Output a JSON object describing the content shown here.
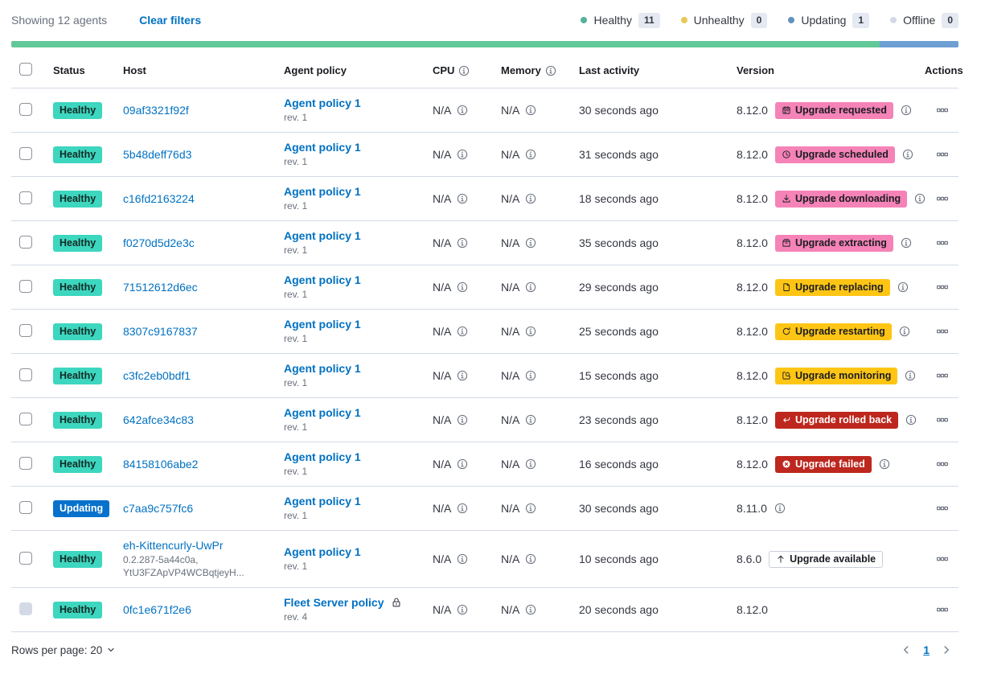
{
  "toolbar": {
    "showing": "Showing 12 agents",
    "clear_filters": "Clear filters"
  },
  "legend": [
    {
      "label": "Healthy",
      "count": "11",
      "color": "#54B399"
    },
    {
      "label": "Unhealthy",
      "count": "0",
      "color": "#E7C854"
    },
    {
      "label": "Updating",
      "count": "1",
      "color": "#6092C0"
    },
    {
      "label": "Offline",
      "count": "0",
      "color": "#D3DAE6"
    }
  ],
  "health_bar": [
    {
      "color": "#62C898",
      "percent": 91.67
    },
    {
      "color": "#6D9FD3",
      "percent": 8.33
    }
  ],
  "table": {
    "headers": [
      {
        "label": "Status"
      },
      {
        "label": "Host"
      },
      {
        "label": "Agent policy"
      },
      {
        "label": "CPU",
        "info": true
      },
      {
        "label": "Memory",
        "info": true
      },
      {
        "label": "Last activity"
      },
      {
        "label": "Version"
      },
      {
        "label": "Actions"
      }
    ],
    "rows": [
      {
        "status": "Healthy",
        "status_type": "healthy",
        "host": "09af3321f92f",
        "host_sub": null,
        "policy": "Agent policy 1",
        "policy_rev": "rev. 1",
        "policy_locked": false,
        "cpu": "N/A",
        "memory": "N/A",
        "last_activity": "30 seconds ago",
        "version": "8.12.0",
        "upgrade": {
          "label": "Upgrade requested",
          "style": "accent",
          "icon": "calendar"
        },
        "version_info": true,
        "checkbox_disabled": false
      },
      {
        "status": "Healthy",
        "status_type": "healthy",
        "host": "5b48deff76d3",
        "host_sub": null,
        "policy": "Agent policy 1",
        "policy_rev": "rev. 1",
        "policy_locked": false,
        "cpu": "N/A",
        "memory": "N/A",
        "last_activity": "31 seconds ago",
        "version": "8.12.0",
        "upgrade": {
          "label": "Upgrade scheduled",
          "style": "accent",
          "icon": "clock"
        },
        "version_info": true,
        "checkbox_disabled": false
      },
      {
        "status": "Healthy",
        "status_type": "healthy",
        "host": "c16fd2163224",
        "host_sub": null,
        "policy": "Agent policy 1",
        "policy_rev": "rev. 1",
        "policy_locked": false,
        "cpu": "N/A",
        "memory": "N/A",
        "last_activity": "18 seconds ago",
        "version": "8.12.0",
        "upgrade": {
          "label": "Upgrade downloading",
          "style": "accent",
          "icon": "download"
        },
        "version_info": true,
        "checkbox_disabled": false
      },
      {
        "status": "Healthy",
        "status_type": "healthy",
        "host": "f0270d5d2e3c",
        "host_sub": null,
        "policy": "Agent policy 1",
        "policy_rev": "rev. 1",
        "policy_locked": false,
        "cpu": "N/A",
        "memory": "N/A",
        "last_activity": "35 seconds ago",
        "version": "8.12.0",
        "upgrade": {
          "label": "Upgrade extracting",
          "style": "accent",
          "icon": "package"
        },
        "version_info": true,
        "checkbox_disabled": false
      },
      {
        "status": "Healthy",
        "status_type": "healthy",
        "host": "71512612d6ec",
        "host_sub": null,
        "policy": "Agent policy 1",
        "policy_rev": "rev. 1",
        "policy_locked": false,
        "cpu": "N/A",
        "memory": "N/A",
        "last_activity": "29 seconds ago",
        "version": "8.12.0",
        "upgrade": {
          "label": "Upgrade replacing",
          "style": "warning",
          "icon": "page"
        },
        "version_info": true,
        "checkbox_disabled": false
      },
      {
        "status": "Healthy",
        "status_type": "healthy",
        "host": "8307c9167837",
        "host_sub": null,
        "policy": "Agent policy 1",
        "policy_rev": "rev. 1",
        "policy_locked": false,
        "cpu": "N/A",
        "memory": "N/A",
        "last_activity": "25 seconds ago",
        "version": "8.12.0",
        "upgrade": {
          "label": "Upgrade restarting",
          "style": "warning",
          "icon": "refresh"
        },
        "version_info": true,
        "checkbox_disabled": false
      },
      {
        "status": "Healthy",
        "status_type": "healthy",
        "host": "c3fc2eb0bdf1",
        "host_sub": null,
        "policy": "Agent policy 1",
        "policy_rev": "rev. 1",
        "policy_locked": false,
        "cpu": "N/A",
        "memory": "N/A",
        "last_activity": "15 seconds ago",
        "version": "8.12.0",
        "upgrade": {
          "label": "Upgrade monitoring",
          "style": "warning",
          "icon": "inspect"
        },
        "version_info": true,
        "checkbox_disabled": false
      },
      {
        "status": "Healthy",
        "status_type": "healthy",
        "host": "642afce34c83",
        "host_sub": null,
        "policy": "Agent policy 1",
        "policy_rev": "rev. 1",
        "policy_locked": false,
        "cpu": "N/A",
        "memory": "N/A",
        "last_activity": "23 seconds ago",
        "version": "8.12.0",
        "upgrade": {
          "label": "Upgrade rolled back",
          "style": "danger",
          "icon": "return"
        },
        "version_info": true,
        "checkbox_disabled": false
      },
      {
        "status": "Healthy",
        "status_type": "healthy",
        "host": "84158106abe2",
        "host_sub": null,
        "policy": "Agent policy 1",
        "policy_rev": "rev. 1",
        "policy_locked": false,
        "cpu": "N/A",
        "memory": "N/A",
        "last_activity": "16 seconds ago",
        "version": "8.12.0",
        "upgrade": {
          "label": "Upgrade failed",
          "style": "danger",
          "icon": "error"
        },
        "version_info": true,
        "checkbox_disabled": false
      },
      {
        "status": "Updating",
        "status_type": "updating",
        "host": "c7aa9c757fc6",
        "host_sub": null,
        "policy": "Agent policy 1",
        "policy_rev": "rev. 1",
        "policy_locked": false,
        "cpu": "N/A",
        "memory": "N/A",
        "last_activity": "30 seconds ago",
        "version": "8.11.0",
        "upgrade": null,
        "version_info": true,
        "checkbox_disabled": false
      },
      {
        "status": "Healthy",
        "status_type": "healthy",
        "host": "eh-Kittencurly-UwPr",
        "host_sub": [
          "0.2.287-5a44c0a,",
          "YtU3FZApVP4WCBqtjeyH..."
        ],
        "policy": "Agent policy 1",
        "policy_rev": "rev. 1",
        "policy_locked": false,
        "cpu": "N/A",
        "memory": "N/A",
        "last_activity": "10 seconds ago",
        "version": "8.6.0",
        "upgrade": {
          "label": "Upgrade available",
          "style": "hollow",
          "icon": "arrow-up"
        },
        "version_info": false,
        "checkbox_disabled": false
      },
      {
        "status": "Healthy",
        "status_type": "healthy",
        "host": "0fc1e671f2e6",
        "host_sub": null,
        "policy": "Fleet Server policy",
        "policy_rev": "rev. 4",
        "policy_locked": true,
        "cpu": "N/A",
        "memory": "N/A",
        "last_activity": "20 seconds ago",
        "version": "8.12.0",
        "upgrade": null,
        "version_info": false,
        "checkbox_disabled": true
      }
    ]
  },
  "footer": {
    "rows_per_page_label": "Rows per page: 20",
    "page": "1"
  },
  "colors": {
    "healthy_badge": "#3DD6BF",
    "updating_badge": "#0871CC",
    "accent_badge": "#F583B7",
    "warning_badge": "#FEC514",
    "danger_badge": "#BD271E",
    "link": "#0071C2"
  }
}
